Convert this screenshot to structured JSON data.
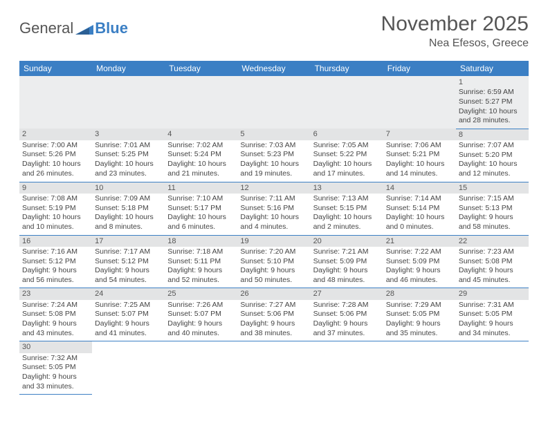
{
  "logo": {
    "part1": "General",
    "part2": "Blue"
  },
  "header": {
    "month": "November 2025",
    "location": "Nea Efesos, Greece"
  },
  "weekdays": [
    "Sunday",
    "Monday",
    "Tuesday",
    "Wednesday",
    "Thursday",
    "Friday",
    "Saturday"
  ],
  "colors": {
    "accent": "#3b7fc4",
    "band": "#e3e4e5",
    "blankband": "#ecedee",
    "text": "#444"
  },
  "cells": [
    [
      null,
      null,
      null,
      null,
      null,
      null,
      {
        "n": "1",
        "r": "6:59 AM",
        "s": "5:27 PM",
        "d": "10 hours and 28 minutes."
      }
    ],
    [
      {
        "n": "2",
        "r": "7:00 AM",
        "s": "5:26 PM",
        "d": "10 hours and 26 minutes."
      },
      {
        "n": "3",
        "r": "7:01 AM",
        "s": "5:25 PM",
        "d": "10 hours and 23 minutes."
      },
      {
        "n": "4",
        "r": "7:02 AM",
        "s": "5:24 PM",
        "d": "10 hours and 21 minutes."
      },
      {
        "n": "5",
        "r": "7:03 AM",
        "s": "5:23 PM",
        "d": "10 hours and 19 minutes."
      },
      {
        "n": "6",
        "r": "7:05 AM",
        "s": "5:22 PM",
        "d": "10 hours and 17 minutes."
      },
      {
        "n": "7",
        "r": "7:06 AM",
        "s": "5:21 PM",
        "d": "10 hours and 14 minutes."
      },
      {
        "n": "8",
        "r": "7:07 AM",
        "s": "5:20 PM",
        "d": "10 hours and 12 minutes."
      }
    ],
    [
      {
        "n": "9",
        "r": "7:08 AM",
        "s": "5:19 PM",
        "d": "10 hours and 10 minutes."
      },
      {
        "n": "10",
        "r": "7:09 AM",
        "s": "5:18 PM",
        "d": "10 hours and 8 minutes."
      },
      {
        "n": "11",
        "r": "7:10 AM",
        "s": "5:17 PM",
        "d": "10 hours and 6 minutes."
      },
      {
        "n": "12",
        "r": "7:11 AM",
        "s": "5:16 PM",
        "d": "10 hours and 4 minutes."
      },
      {
        "n": "13",
        "r": "7:13 AM",
        "s": "5:15 PM",
        "d": "10 hours and 2 minutes."
      },
      {
        "n": "14",
        "r": "7:14 AM",
        "s": "5:14 PM",
        "d": "10 hours and 0 minutes."
      },
      {
        "n": "15",
        "r": "7:15 AM",
        "s": "5:13 PM",
        "d": "9 hours and 58 minutes."
      }
    ],
    [
      {
        "n": "16",
        "r": "7:16 AM",
        "s": "5:12 PM",
        "d": "9 hours and 56 minutes."
      },
      {
        "n": "17",
        "r": "7:17 AM",
        "s": "5:12 PM",
        "d": "9 hours and 54 minutes."
      },
      {
        "n": "18",
        "r": "7:18 AM",
        "s": "5:11 PM",
        "d": "9 hours and 52 minutes."
      },
      {
        "n": "19",
        "r": "7:20 AM",
        "s": "5:10 PM",
        "d": "9 hours and 50 minutes."
      },
      {
        "n": "20",
        "r": "7:21 AM",
        "s": "5:09 PM",
        "d": "9 hours and 48 minutes."
      },
      {
        "n": "21",
        "r": "7:22 AM",
        "s": "5:09 PM",
        "d": "9 hours and 46 minutes."
      },
      {
        "n": "22",
        "r": "7:23 AM",
        "s": "5:08 PM",
        "d": "9 hours and 45 minutes."
      }
    ],
    [
      {
        "n": "23",
        "r": "7:24 AM",
        "s": "5:08 PM",
        "d": "9 hours and 43 minutes."
      },
      {
        "n": "24",
        "r": "7:25 AM",
        "s": "5:07 PM",
        "d": "9 hours and 41 minutes."
      },
      {
        "n": "25",
        "r": "7:26 AM",
        "s": "5:07 PM",
        "d": "9 hours and 40 minutes."
      },
      {
        "n": "26",
        "r": "7:27 AM",
        "s": "5:06 PM",
        "d": "9 hours and 38 minutes."
      },
      {
        "n": "27",
        "r": "7:28 AM",
        "s": "5:06 PM",
        "d": "9 hours and 37 minutes."
      },
      {
        "n": "28",
        "r": "7:29 AM",
        "s": "5:05 PM",
        "d": "9 hours and 35 minutes."
      },
      {
        "n": "29",
        "r": "7:31 AM",
        "s": "5:05 PM",
        "d": "9 hours and 34 minutes."
      }
    ],
    [
      {
        "n": "30",
        "r": "7:32 AM",
        "s": "5:05 PM",
        "d": "9 hours and 33 minutes."
      },
      null,
      null,
      null,
      null,
      null,
      null
    ]
  ],
  "labels": {
    "sunrise": "Sunrise: ",
    "sunset": "Sunset: ",
    "daylight": "Daylight: "
  }
}
